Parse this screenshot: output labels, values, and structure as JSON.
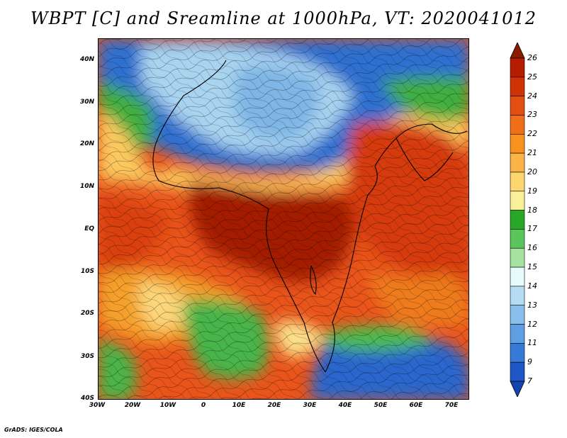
{
  "title": "WBPT [C] and Sreamline at 1000hPa, VT: 2020041012",
  "credit": "GrADS: IGES/COLA",
  "y_axis_labels": [
    "40N",
    "30N",
    "20N",
    "10N",
    "EQ",
    "10S",
    "20S",
    "30S",
    "40S"
  ],
  "x_axis_labels": [
    "30W",
    "20W",
    "10W",
    "0",
    "10E",
    "20E",
    "30E",
    "40E",
    "50E",
    "60E",
    "70E"
  ],
  "colorbar": {
    "labels": [
      "26",
      "25",
      "24",
      "23",
      "22",
      "21",
      "20",
      "19",
      "18",
      "17",
      "16",
      "15",
      "14",
      "13",
      "12",
      "11",
      "9",
      "7"
    ],
    "colors": [
      "#8b1a00",
      "#b41d00",
      "#d03305",
      "#e24f10",
      "#f06e1a",
      "#f7921f",
      "#fbb348",
      "#fcd66e",
      "#fbf09a",
      "#27a827",
      "#5bc45b",
      "#a6e3a0",
      "#e8fbfb",
      "#b4dcf2",
      "#89bfec",
      "#5e9fe3",
      "#3779d6",
      "#1f57c7",
      "#1444b0"
    ]
  },
  "map": {
    "variable": "Wet-bulb potential temperature with streamlines",
    "level": "1000hPa",
    "valid_time": "2020041012",
    "lon_range": [
      "30W",
      "75E"
    ],
    "lat_range": [
      "40S",
      "45N"
    ]
  }
}
